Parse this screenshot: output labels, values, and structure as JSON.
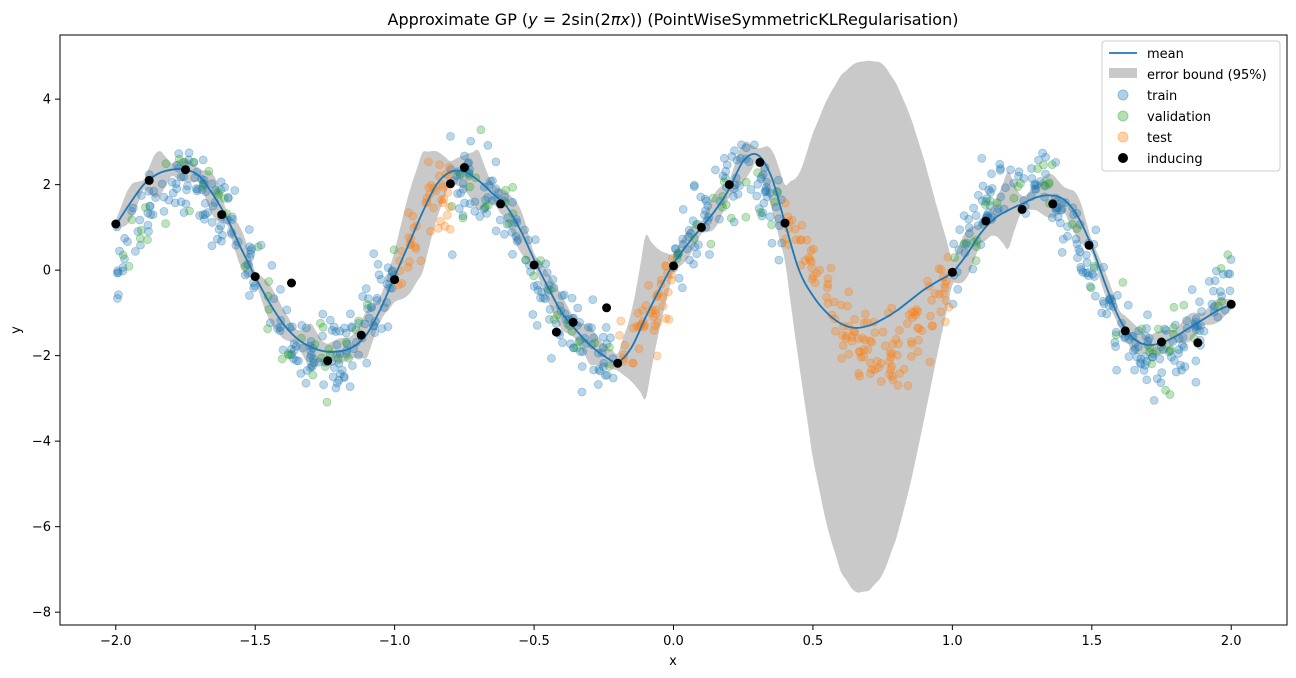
{
  "chart_data": {
    "type": "scatter",
    "title": "Approximate GP (y = 2sin(2πx)) (PointWiseSymmetricKLRegularisation)",
    "title_parts": {
      "prefix": "Approximate GP (",
      "math_y": "y",
      "math_eq": " = 2sin(2",
      "math_pi": "π",
      "math_x": "x",
      "math_close": "))",
      "suffix": " (PointWiseSymmetricKLRegularisation)"
    },
    "xlabel": "x",
    "ylabel": "y",
    "xlim": [
      -2.2,
      2.2
    ],
    "ylim": [
      -8.3,
      5.5
    ],
    "xticks": [
      -2.0,
      -1.5,
      -1.0,
      -0.5,
      0.0,
      0.5,
      1.0,
      1.5,
      2.0
    ],
    "xtick_labels": [
      "−2.0",
      "−1.5",
      "−1.0",
      "−0.5",
      "0.0",
      "0.5",
      "1.0",
      "1.5",
      "2.0"
    ],
    "yticks": [
      4,
      2,
      0,
      -2,
      -4,
      -6,
      -8
    ],
    "ytick_labels": [
      "4",
      "2",
      "0",
      "−2",
      "−4",
      "−6",
      "−8"
    ],
    "grid": false,
    "legend_placement": "top-right",
    "legend": [
      "mean",
      "error bound (95%)",
      "train",
      "validation",
      "test",
      "inducing"
    ],
    "colors": {
      "mean": "#1f77b4",
      "error_bound": "#c9c9c9",
      "train": "#1f77b4",
      "validation": "#2ca02c",
      "test": "#ff7f0e",
      "inducing": "#000000"
    },
    "regions": {
      "train": [
        [
          -2.0,
          -1.0
        ],
        [
          -0.8,
          -0.2
        ],
        [
          0.0,
          0.4
        ],
        [
          1.0,
          2.0
        ]
      ],
      "validation": [
        [
          -2.0,
          -1.0
        ],
        [
          -0.8,
          -0.2
        ],
        [
          0.0,
          0.4
        ],
        [
          1.0,
          2.0
        ]
      ],
      "test": [
        [
          -1.0,
          -0.8
        ],
        [
          -0.2,
          0.0
        ],
        [
          0.4,
          1.0
        ]
      ]
    },
    "mean_curve": {
      "x": [
        -2.0,
        -1.95,
        -1.9,
        -1.85,
        -1.8,
        -1.75,
        -1.7,
        -1.65,
        -1.6,
        -1.55,
        -1.5,
        -1.45,
        -1.4,
        -1.35,
        -1.3,
        -1.25,
        -1.2,
        -1.15,
        -1.1,
        -1.05,
        -1.0,
        -0.95,
        -0.9,
        -0.85,
        -0.8,
        -0.75,
        -0.7,
        -0.65,
        -0.6,
        -0.55,
        -0.5,
        -0.45,
        -0.4,
        -0.35,
        -0.3,
        -0.25,
        -0.2,
        -0.15,
        -0.1,
        -0.05,
        0.0,
        0.05,
        0.1,
        0.15,
        0.2,
        0.25,
        0.3,
        0.35,
        0.4,
        0.45,
        0.5,
        0.55,
        0.6,
        0.65,
        0.7,
        0.75,
        0.8,
        0.85,
        0.9,
        0.95,
        1.0,
        1.05,
        1.1,
        1.15,
        1.2,
        1.25,
        1.3,
        1.35,
        1.4,
        1.45,
        1.5,
        1.55,
        1.6,
        1.65,
        1.7,
        1.75,
        1.8,
        1.85,
        1.9,
        1.95,
        2.0
      ],
      "y": [
        1.05,
        1.55,
        2.0,
        2.25,
        2.35,
        2.35,
        2.2,
        1.75,
        1.2,
        0.5,
        -0.15,
        -0.75,
        -1.25,
        -1.6,
        -1.8,
        -1.9,
        -1.9,
        -1.8,
        -1.5,
        -0.9,
        -0.15,
        0.6,
        1.35,
        2.0,
        2.3,
        2.3,
        2.1,
        1.8,
        1.5,
        0.95,
        0.25,
        -0.4,
        -1.0,
        -1.4,
        -1.75,
        -2.0,
        -2.15,
        -1.8,
        -1.1,
        -0.45,
        0.15,
        0.6,
        1.0,
        1.4,
        1.9,
        2.55,
        2.7,
        2.2,
        1.1,
        0.0,
        -0.6,
        -1.0,
        -1.25,
        -1.35,
        -1.3,
        -1.15,
        -0.95,
        -0.7,
        -0.45,
        -0.25,
        -0.05,
        0.35,
        0.85,
        1.2,
        1.4,
        1.55,
        1.7,
        1.75,
        1.65,
        1.25,
        0.55,
        -0.35,
        -1.15,
        -1.6,
        -1.75,
        -1.7,
        -1.55,
        -1.35,
        -1.15,
        -0.95,
        -0.8
      ]
    },
    "error_bound_halfwidth": {
      "x": [
        -2.0,
        -1.95,
        -1.9,
        -1.85,
        -1.8,
        -1.75,
        -1.7,
        -1.65,
        -1.6,
        -1.55,
        -1.5,
        -1.45,
        -1.4,
        -1.35,
        -1.3,
        -1.25,
        -1.2,
        -1.15,
        -1.1,
        -1.05,
        -1.0,
        -0.95,
        -0.9,
        -0.85,
        -0.8,
        -0.75,
        -0.7,
        -0.65,
        -0.6,
        -0.55,
        -0.5,
        -0.45,
        -0.4,
        -0.35,
        -0.3,
        -0.25,
        -0.2,
        -0.15,
        -0.1,
        -0.05,
        0.0,
        0.05,
        0.1,
        0.15,
        0.2,
        0.25,
        0.3,
        0.35,
        0.4,
        0.45,
        0.5,
        0.55,
        0.6,
        0.65,
        0.7,
        0.75,
        0.8,
        0.85,
        0.9,
        0.95,
        1.0,
        1.05,
        1.1,
        1.15,
        1.2,
        1.25,
        1.3,
        1.35,
        1.4,
        1.45,
        1.5,
        1.55,
        1.6,
        1.65,
        1.7,
        1.75,
        1.8,
        1.85,
        1.9,
        1.95,
        2.0
      ],
      "h": [
        0.12,
        0.45,
        0.12,
        0.6,
        0.15,
        0.3,
        0.15,
        0.55,
        0.15,
        0.5,
        0.12,
        0.45,
        0.35,
        0.15,
        0.55,
        0.15,
        0.3,
        0.25,
        0.55,
        0.25,
        0.6,
        1.2,
        1.4,
        0.8,
        0.25,
        0.4,
        0.7,
        0.2,
        0.35,
        0.55,
        0.15,
        0.35,
        0.4,
        0.2,
        0.45,
        0.25,
        0.2,
        0.8,
        1.9,
        0.9,
        0.2,
        0.35,
        0.15,
        0.45,
        0.2,
        0.5,
        0.15,
        0.7,
        0.9,
        2.2,
        3.8,
        5.0,
        5.8,
        6.2,
        6.2,
        6.0,
        5.3,
        4.3,
        3.0,
        1.6,
        0.3,
        0.6,
        0.25,
        0.35,
        0.9,
        0.12,
        0.3,
        0.55,
        0.3,
        0.55,
        0.15,
        0.3,
        0.2,
        0.35,
        0.2,
        0.3,
        0.15,
        0.35,
        0.15,
        0.3,
        0.12
      ]
    },
    "inducing_points": {
      "x": [
        -2.0,
        -1.88,
        -1.75,
        -1.62,
        -1.5,
        -1.37,
        -1.24,
        -1.12,
        -1.0,
        -0.8,
        -0.75,
        -0.62,
        -0.5,
        -0.42,
        -0.36,
        -0.24,
        -0.2,
        0.0,
        0.1,
        0.2,
        0.31,
        0.4,
        1.0,
        1.12,
        1.25,
        1.36,
        1.49,
        1.62,
        1.75,
        1.88,
        2.0
      ],
      "y": [
        1.08,
        2.1,
        2.35,
        1.3,
        -0.15,
        -0.3,
        -2.12,
        -1.52,
        -0.22,
        2.02,
        2.4,
        1.55,
        0.12,
        -1.45,
        -1.22,
        -0.88,
        -2.18,
        0.1,
        1.0,
        2.0,
        2.52,
        1.1,
        -0.05,
        1.15,
        1.42,
        1.55,
        0.58,
        -1.42,
        -1.68,
        -1.7,
        -0.8
      ]
    },
    "noise_sd": 0.45,
    "points_per_unit": {
      "train": 220,
      "validation": 45,
      "test": 230
    }
  }
}
